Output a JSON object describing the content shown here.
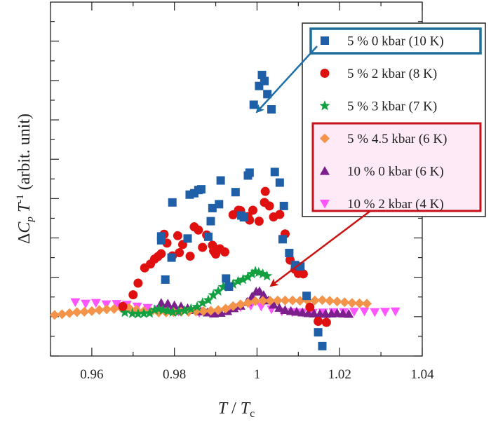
{
  "chart_data": {
    "type": "scatter",
    "title": "",
    "xlabel": "T / Tc",
    "ylabel": "ΔCp T-1 (arbit. unit)",
    "xlim": [
      0.95,
      1.04
    ],
    "ylim": [
      0,
      1
    ],
    "x_ticks": [
      0.96,
      0.98,
      1.0,
      1.02,
      1.04
    ],
    "x_tick_labels": [
      "0.96",
      "0.98",
      "1",
      "1.02",
      "1.04"
    ],
    "y_tick_labels_shown": false,
    "series": [
      {
        "name": "5 % 0 kbar (10 K)",
        "marker": "square",
        "color": "#1f5fa8",
        "x": [
          0.9768,
          0.9778,
          0.9793,
          0.9795,
          0.9768,
          0.9832,
          0.9837,
          0.9848,
          0.9858,
          0.9865,
          0.9882,
          0.9888,
          0.9892,
          0.9908,
          0.9912,
          0.9925,
          0.9932,
          0.9948,
          0.9962,
          0.9968,
          0.9978,
          0.9982,
          0.9992,
          1.0005,
          1.0012,
          1.0018,
          1.0025,
          1.0035,
          1.0043,
          1.0055,
          1.0062,
          1.0065,
          1.0078,
          1.0092,
          1.0105,
          1.012,
          1.0148,
          1.0158
        ],
        "y": [
          0.338,
          0.216,
          0.278,
          0.434,
          0.327,
          0.332,
          0.456,
          0.46,
          0.469,
          0.471,
          0.337,
          0.381,
          0.418,
          0.429,
          0.496,
          0.219,
          0.196,
          0.463,
          0.397,
          0.392,
          0.51,
          0.518,
          0.71,
          0.763,
          0.794,
          0.777,
          0.74,
          0.697,
          0.52,
          0.49,
          0.33,
          0.424,
          0.291,
          0.257,
          0.253,
          0.17,
          0.067,
          0.028
        ]
      },
      {
        "name": "5 % 2 kbar (8 K)",
        "marker": "circle",
        "color": "#e01010",
        "x": [
          0.9675,
          0.97,
          0.9712,
          0.9728,
          0.9742,
          0.9752,
          0.976,
          0.9768,
          0.9775,
          0.9782,
          0.9795,
          0.9808,
          0.9812,
          0.982,
          0.9838,
          0.9848,
          0.9858,
          0.9868,
          0.9878,
          0.9892,
          0.99,
          0.991,
          0.9922,
          0.9942,
          0.9955,
          0.996,
          0.9978,
          0.9982,
          0.999,
          1.0005,
          1.0018,
          1.003,
          1.004,
          1.0055,
          1.0068,
          1.008,
          1.0092,
          1.01,
          1.0112,
          1.0128,
          1.0148,
          1.0168,
          0.9895,
          1.002,
          1.012
        ],
        "y": [
          0.14,
          0.173,
          0.206,
          0.249,
          0.26,
          0.274,
          0.281,
          0.289,
          0.344,
          0.319,
          0.283,
          0.34,
          0.292,
          0.315,
          0.282,
          0.365,
          0.356,
          0.307,
          0.342,
          0.313,
          0.288,
          0.303,
          0.294,
          0.399,
          0.412,
          0.411,
          0.394,
          0.384,
          0.412,
          0.381,
          0.434,
          0.424,
          0.393,
          0.4,
          0.345,
          0.271,
          0.245,
          0.233,
          0.232,
          0.138,
          0.098,
          0.095,
          0.297,
          0.465,
          0.42
        ]
      },
      {
        "name": "5 % 3 kbar (7 K)",
        "marker": "star",
        "color": "#10a040",
        "x": [
          0.968,
          0.9698,
          0.9712,
          0.9726,
          0.974,
          0.9752,
          0.9762,
          0.9772,
          0.9784,
          0.9796,
          0.981,
          0.9825,
          0.984,
          0.9855,
          0.9868,
          0.9882,
          0.9894,
          0.9906,
          0.9918,
          0.993,
          0.9942,
          0.9954,
          0.9966,
          0.9978,
          0.9988,
          0.9996,
          1.0004,
          1.0014,
          1.0024
        ],
        "y": [
          0.123,
          0.12,
          0.119,
          0.12,
          0.121,
          0.13,
          0.133,
          0.13,
          0.127,
          0.124,
          0.125,
          0.128,
          0.133,
          0.139,
          0.15,
          0.158,
          0.172,
          0.183,
          0.195,
          0.2,
          0.203,
          0.211,
          0.216,
          0.223,
          0.232,
          0.239,
          0.236,
          0.232,
          0.226
        ]
      },
      {
        "name": "5 % 4.5 kbar (6 K)",
        "marker": "diamond",
        "color": "#f4944a",
        "x": [
          0.951,
          0.9528,
          0.9546,
          0.9564,
          0.9582,
          0.96,
          0.9618,
          0.9636,
          0.9654,
          0.9672,
          0.969,
          0.9708,
          0.9726,
          0.9744,
          0.9762,
          0.978,
          0.9798,
          0.9816,
          0.9834,
          0.9852,
          0.987,
          0.9888,
          0.9906,
          0.9924,
          0.9942,
          0.996,
          0.9978,
          0.9996,
          1.0014,
          1.0032,
          1.005,
          1.0068,
          1.0086,
          1.0104,
          1.0122,
          1.014,
          1.0158,
          1.0176,
          1.0194,
          1.0212,
          1.023,
          1.0248,
          1.0266
        ],
        "y": [
          0.116,
          0.118,
          0.121,
          0.124,
          0.125,
          0.127,
          0.13,
          0.132,
          0.133,
          0.135,
          0.136,
          0.131,
          0.127,
          0.125,
          0.123,
          0.123,
          0.124,
          0.125,
          0.125,
          0.126,
          0.127,
          0.128,
          0.13,
          0.134,
          0.141,
          0.146,
          0.15,
          0.155,
          0.156,
          0.156,
          0.157,
          0.157,
          0.157,
          0.156,
          0.157,
          0.157,
          0.158,
          0.156,
          0.154,
          0.152,
          0.15,
          0.149,
          0.148
        ]
      },
      {
        "name": "10 % 0 kbar (6 K)",
        "marker": "triangle-up",
        "color": "#7a1f8c",
        "x": [
          0.9768,
          0.9784,
          0.98,
          0.9816,
          0.9832,
          0.9848,
          0.9864,
          0.988,
          0.9896,
          0.9912,
          0.9928,
          0.9944,
          0.996,
          0.9976,
          0.9988,
          0.9998,
          1.0006,
          1.0016,
          1.0028,
          1.004,
          1.0054,
          1.0068,
          1.0082,
          1.0096,
          1.011,
          1.0124,
          1.0138,
          1.0152,
          1.0166,
          1.018,
          1.0194,
          1.0208,
          1.0222
        ],
        "y": [
          0.15,
          0.148,
          0.143,
          0.14,
          0.135,
          0.13,
          0.126,
          0.123,
          0.12,
          0.122,
          0.127,
          0.135,
          0.142,
          0.153,
          0.168,
          0.182,
          0.183,
          0.172,
          0.157,
          0.145,
          0.136,
          0.13,
          0.127,
          0.125,
          0.123,
          0.121,
          0.12,
          0.119,
          0.119,
          0.12,
          0.121,
          0.12,
          0.119
        ]
      },
      {
        "name": "10 % 2 kbar (4 K)",
        "marker": "triangle-down",
        "color": "#ff55ff",
        "x": [
          0.956,
          0.9585,
          0.961,
          0.9635,
          0.966,
          0.9685,
          0.971,
          0.9735,
          0.976,
          0.9785,
          0.981,
          0.9835,
          0.986,
          0.9885,
          0.991,
          0.9935,
          0.996,
          0.9985,
          1.001,
          1.0035,
          1.006,
          1.0085,
          1.011,
          1.0135,
          1.016,
          1.0185,
          1.021,
          1.0235,
          1.026,
          1.0285,
          1.031,
          1.0335
        ],
        "y": [
          0.152,
          0.148,
          0.15,
          0.146,
          0.147,
          0.145,
          0.14,
          0.136,
          0.132,
          0.129,
          0.126,
          0.124,
          0.122,
          0.122,
          0.125,
          0.13,
          0.138,
          0.142,
          0.14,
          0.132,
          0.126,
          0.124,
          0.123,
          0.122,
          0.123,
          0.124,
          0.124,
          0.125,
          0.126,
          0.124,
          0.125,
          0.126
        ]
      }
    ],
    "legend": {
      "position": "top-right",
      "entries": [
        "5 % 0 kbar (10 K)",
        "5 % 2 kbar (8 K)",
        "5 % 3 kbar (7 K)",
        "5 % 4.5 kbar (6 K)",
        "10 % 0 kbar (6 K)",
        "10 % 2 kbar (4 K)"
      ]
    },
    "annotations": [
      {
        "type": "arrow",
        "color": "#1f5fa8",
        "from_legend_entry": "5 % 0 kbar (10 K)",
        "to_data": [
          0.9995,
          0.775
        ]
      },
      {
        "type": "arrow",
        "color": "#cc1111",
        "from_legend_group": [
          "5 % 4.5 kbar (6 K)",
          "10 % 0 kbar (6 K)",
          "10 % 2 kbar (4 K)"
        ],
        "to_data": [
          1.0005,
          0.183
        ]
      }
    ]
  }
}
